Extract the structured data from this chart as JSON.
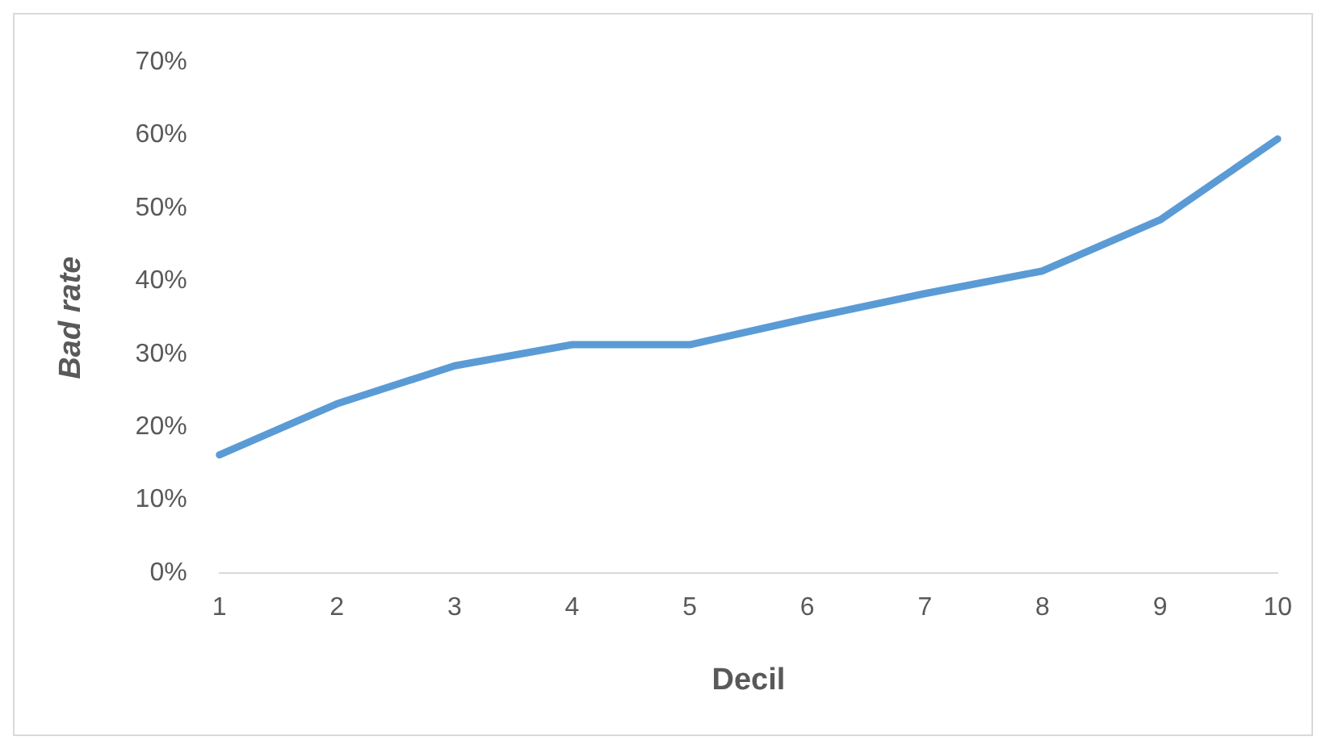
{
  "chart_data": {
    "type": "line",
    "xlabel": "Decil",
    "ylabel": "Bad rate",
    "categories": [
      "1",
      "2",
      "3",
      "4",
      "5",
      "6",
      "7",
      "8",
      "9",
      "10"
    ],
    "series": [
      {
        "color": "#5b9bd5",
        "values": [
          16.2,
          23.2,
          28.4,
          31.3,
          31.3,
          34.9,
          38.3,
          41.4,
          48.4,
          59.5
        ]
      }
    ],
    "ylim": [
      0,
      70
    ],
    "yticks": [
      {
        "value": 0,
        "label": "0%"
      },
      {
        "value": 10,
        "label": "10%"
      },
      {
        "value": 20,
        "label": "20%"
      },
      {
        "value": 30,
        "label": "30%"
      },
      {
        "value": 40,
        "label": "40%"
      },
      {
        "value": 50,
        "label": "50%"
      },
      {
        "value": 60,
        "label": "60%"
      },
      {
        "value": 70,
        "label": "70%"
      }
    ],
    "grid": false,
    "legend": false,
    "marker": "none",
    "line_style": "solid"
  }
}
